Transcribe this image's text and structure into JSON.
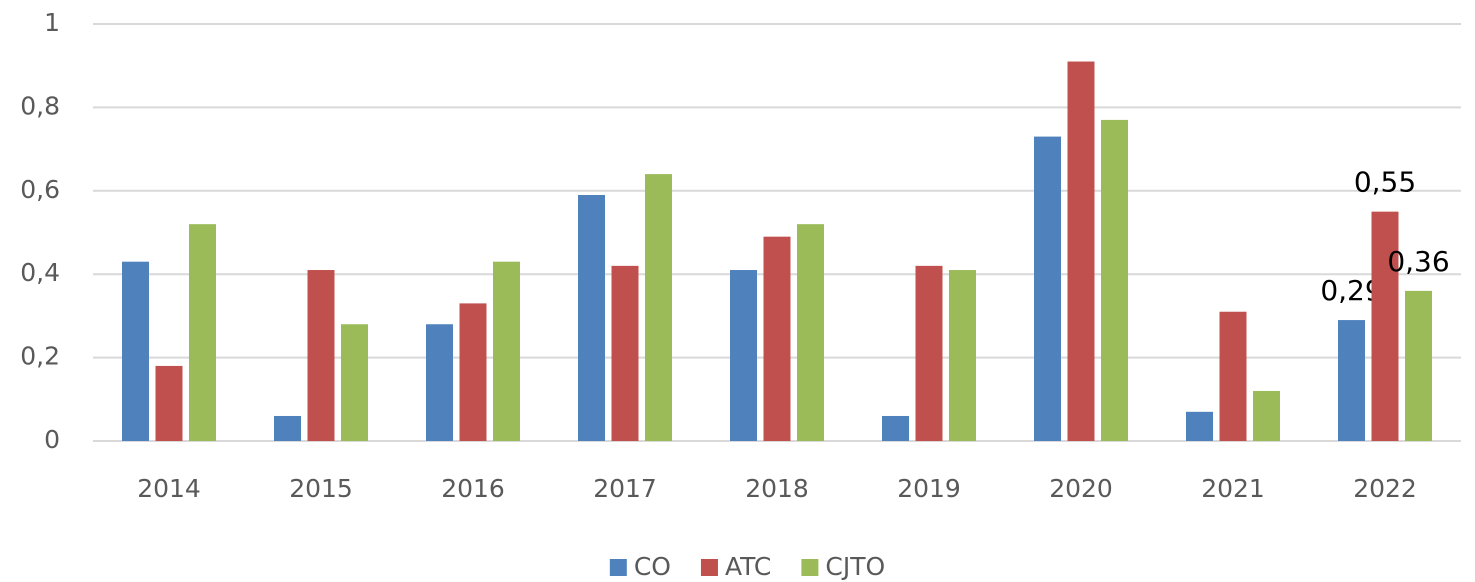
{
  "chart_data": {
    "type": "bar",
    "categories": [
      "2014",
      "2015",
      "2016",
      "2017",
      "2018",
      "2019",
      "2020",
      "2021",
      "2022"
    ],
    "series": [
      {
        "name": "CO",
        "color": "#4f81bd",
        "values": [
          0.43,
          0.06,
          0.28,
          0.59,
          0.41,
          0.06,
          0.73,
          0.07,
          0.29
        ],
        "value_labels": [
          null,
          null,
          null,
          null,
          null,
          null,
          null,
          null,
          "0,29"
        ]
      },
      {
        "name": "ATC",
        "color": "#c0504d",
        "values": [
          0.18,
          0.41,
          0.33,
          0.42,
          0.49,
          0.42,
          0.91,
          0.31,
          0.55
        ],
        "value_labels": [
          null,
          null,
          null,
          null,
          null,
          null,
          null,
          null,
          "0,55"
        ]
      },
      {
        "name": "CJTO",
        "color": "#9bbb59",
        "values": [
          0.52,
          0.28,
          0.43,
          0.64,
          0.52,
          0.41,
          0.77,
          0.12,
          0.36
        ],
        "value_labels": [
          null,
          null,
          null,
          null,
          null,
          null,
          null,
          null,
          "0,36"
        ]
      }
    ],
    "ylim": [
      0,
      1
    ],
    "yticks": [
      0,
      {
        "value": 0.2,
        "label": "0,2"
      },
      {
        "value": 0.4,
        "label": "0,4"
      },
      {
        "value": 0.6,
        "label": "0,6"
      },
      {
        "value": 0.8,
        "label": "0,8"
      },
      1
    ],
    "grid": true,
    "legend": "bottom"
  }
}
